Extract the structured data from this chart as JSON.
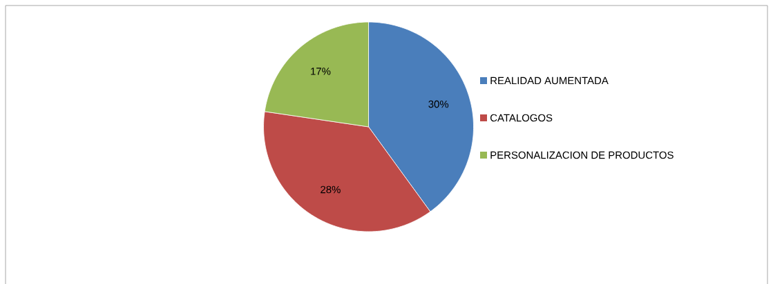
{
  "chart_data": {
    "type": "pie",
    "categories": [
      "REALIDAD AUMENTADA",
      "CATALOGOS",
      "PERSONALIZACION DE PRODUCTOS"
    ],
    "values": [
      30,
      28,
      17
    ],
    "value_labels": [
      "30%",
      "28%",
      "17%"
    ],
    "colors": [
      "#4a7ebb",
      "#be4b48",
      "#98b954"
    ],
    "legend": "right"
  }
}
